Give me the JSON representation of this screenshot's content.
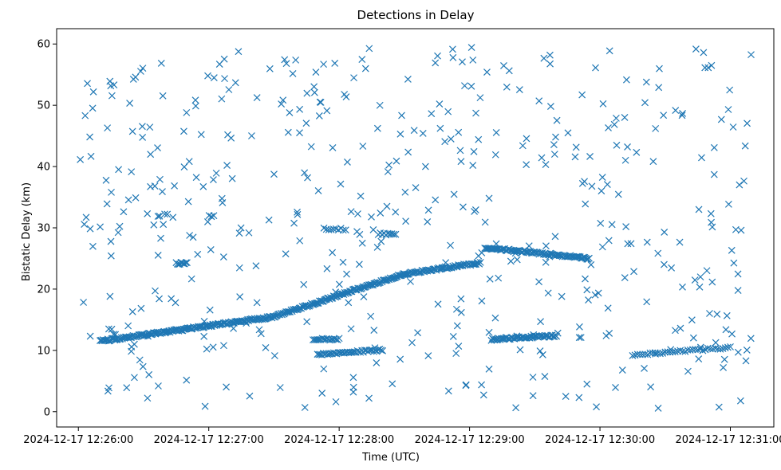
{
  "chart_data": {
    "type": "scatter",
    "title": "Detections in Delay",
    "xlabel": "Time (UTC)",
    "ylabel": "Bistatic Delay (km)",
    "x_ticks": [
      "2024-12-17 12:26:00",
      "2024-12-17 12:27:00",
      "2024-12-17 12:28:00",
      "2024-12-17 12:29:00",
      "2024-12-17 12:30:00",
      "2024-12-17 12:31:00"
    ],
    "y_ticks": [
      "0",
      "10",
      "20",
      "30",
      "40",
      "50",
      "60"
    ],
    "x_range": [
      "2024-12-17 12:25:50",
      "2024-12-17 12:31:20"
    ],
    "ylim": [
      -2.5,
      62.5
    ],
    "marker": "x",
    "color": "#1f77b4",
    "grid": false,
    "legend": "none",
    "series": [
      {
        "kind": "track",
        "segments": [
          {
            "start": "2024-12-17 12:26:10",
            "end": "2024-12-17 12:27:30",
            "y_start": 11.5,
            "y_end": 15.5,
            "count": 180
          },
          {
            "start": "2024-12-17 12:27:30",
            "end": "2024-12-17 12:28:30",
            "y_start": 15.5,
            "y_end": 22.5,
            "count": 130
          },
          {
            "start": "2024-12-17 12:28:30",
            "end": "2024-12-17 12:29:05",
            "y_start": 22.5,
            "y_end": 24.3,
            "count": 70
          },
          {
            "start": "2024-12-17 12:29:07",
            "end": "2024-12-17 12:29:55",
            "y_start": 26.8,
            "y_end": 25.0,
            "count": 95
          },
          {
            "start": "2024-12-17 12:27:50",
            "end": "2024-12-17 12:28:20",
            "y_start": 9.3,
            "y_end": 10.1,
            "count": 45
          },
          {
            "start": "2024-12-17 12:29:10",
            "end": "2024-12-17 12:29:40",
            "y_start": 11.8,
            "y_end": 12.4,
            "count": 60
          },
          {
            "start": "2024-12-17 12:30:15",
            "end": "2024-12-17 12:31:00",
            "y_start": 9.2,
            "y_end": 10.5,
            "count": 40
          },
          {
            "start": "2024-12-17 12:27:48",
            "end": "2024-12-17 12:28:00",
            "y_start": 11.8,
            "y_end": 11.8,
            "count": 18
          },
          {
            "start": "2024-12-17 12:26:45",
            "end": "2024-12-17 12:26:50",
            "y_start": 24.2,
            "y_end": 24.2,
            "count": 10
          },
          {
            "start": "2024-12-17 12:27:53",
            "end": "2024-12-17 12:28:03",
            "y_start": 29.8,
            "y_end": 29.8,
            "count": 10
          },
          {
            "start": "2024-12-17 12:28:18",
            "end": "2024-12-17 12:28:26",
            "y_start": 29.0,
            "y_end": 29.0,
            "count": 10
          }
        ]
      },
      {
        "kind": "clutter",
        "range_x": [
          "2024-12-17 12:26:00",
          "2024-12-17 12:31:10"
        ],
        "range_y": [
          0.5,
          59.5
        ],
        "count": 480
      }
    ]
  }
}
